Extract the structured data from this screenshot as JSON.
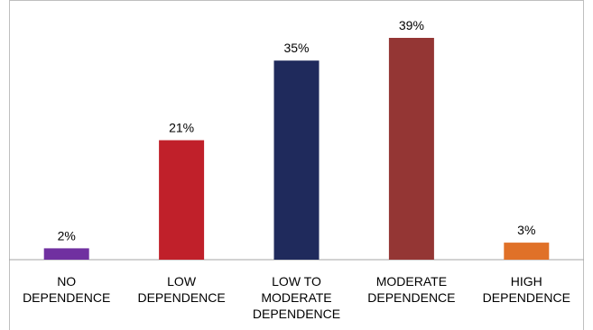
{
  "chart_data": {
    "type": "bar",
    "categories": [
      [
        "NO",
        "DEPENDENCE"
      ],
      [
        "LOW",
        "DEPENDENCE"
      ],
      [
        "LOW TO",
        "MODERATE",
        "DEPENDENCE"
      ],
      [
        "MODERATE",
        "DEPENDENCE"
      ],
      [
        "HIGH",
        "DEPENDENCE"
      ]
    ],
    "values": [
      2,
      21,
      35,
      39,
      3
    ],
    "data_labels": [
      "2%",
      "21%",
      "35%",
      "39%",
      "3%"
    ],
    "colors": [
      "#7030a0",
      "#c0202a",
      "#1f2a5c",
      "#943634",
      "#e07128"
    ],
    "title": "",
    "xlabel": "",
    "ylabel": "",
    "ylim": [
      0,
      39
    ],
    "grid": false,
    "legend": "none"
  }
}
